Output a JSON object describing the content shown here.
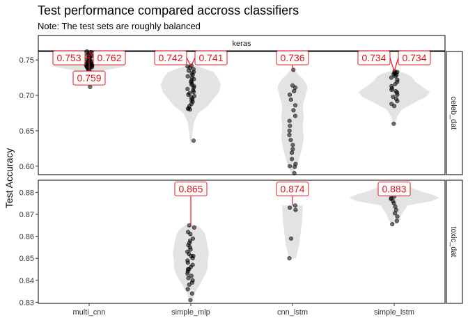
{
  "chart_data": {
    "type": "violin",
    "title": "Test performance compared accross classifiers",
    "subtitle": "Note: The test sets are roughly balanced",
    "ylabel": "Test Accuracy",
    "xlabel": "",
    "facet_col_label": "keras",
    "categories": [
      "multi_cnn",
      "simple_mlp",
      "cnn_lstm",
      "simple_lstm"
    ],
    "colors": {
      "violin": "#e3e3e3",
      "point": "#000000",
      "label": "#e4151b",
      "panel_border": "#000000"
    },
    "panels": [
      {
        "row_label": "celeb_dat",
        "ylim": [
          0.588,
          0.762
        ],
        "yticks": [
          0.6,
          0.65,
          0.7,
          0.75
        ],
        "tick_labels": [
          "0.60",
          "0.65",
          "0.70",
          "0.75"
        ],
        "violins": [
          {
            "category": "multi_cnn",
            "density": [
              [
                0.712,
                0.04
              ],
              [
                0.722,
                0.06
              ],
              [
                0.73,
                0.12
              ],
              [
                0.735,
                0.35
              ],
              [
                0.739,
                0.8
              ],
              [
                0.742,
                1.0
              ],
              [
                0.746,
                0.75
              ],
              [
                0.75,
                0.45
              ],
              [
                0.755,
                0.28
              ],
              [
                0.76,
                0.12
              ],
              [
                0.762,
                0.05
              ]
            ]
          },
          {
            "category": "simple_mlp",
            "density": [
              [
                0.636,
                0.02
              ],
              [
                0.65,
                0.05
              ],
              [
                0.662,
                0.08
              ],
              [
                0.675,
                0.2
              ],
              [
                0.685,
                0.45
              ],
              [
                0.695,
                0.6
              ],
              [
                0.705,
                0.75
              ],
              [
                0.715,
                0.8
              ],
              [
                0.725,
                0.72
              ],
              [
                0.733,
                0.6
              ],
              [
                0.738,
                0.35
              ],
              [
                0.742,
                0.12
              ]
            ]
          },
          {
            "category": "cnn_lstm",
            "density": [
              [
                0.59,
                0.03
              ],
              [
                0.597,
                0.08
              ],
              [
                0.605,
                0.15
              ],
              [
                0.615,
                0.2
              ],
              [
                0.625,
                0.25
              ],
              [
                0.64,
                0.3
              ],
              [
                0.655,
                0.27
              ],
              [
                0.67,
                0.3
              ],
              [
                0.685,
                0.27
              ],
              [
                0.7,
                0.35
              ],
              [
                0.712,
                0.4
              ],
              [
                0.722,
                0.3
              ],
              [
                0.73,
                0.15
              ],
              [
                0.736,
                0.04
              ]
            ]
          },
          {
            "category": "simple_lstm",
            "density": [
              [
                0.66,
                0.03
              ],
              [
                0.67,
                0.08
              ],
              [
                0.68,
                0.2
              ],
              [
                0.69,
                0.55
              ],
              [
                0.698,
                0.85
              ],
              [
                0.705,
                0.95
              ],
              [
                0.712,
                0.75
              ],
              [
                0.72,
                0.55
              ],
              [
                0.727,
                0.45
              ],
              [
                0.731,
                0.3
              ],
              [
                0.734,
                0.12
              ]
            ]
          }
        ],
        "points": [
          {
            "category": "multi_cnn",
            "values": [
              0.762,
              0.761,
              0.76,
              0.759,
              0.757,
              0.756,
              0.755,
              0.754,
              0.753,
              0.752,
              0.751,
              0.75,
              0.749,
              0.749,
              0.748,
              0.747,
              0.746,
              0.746,
              0.745,
              0.745,
              0.744,
              0.744,
              0.743,
              0.743,
              0.742,
              0.742,
              0.741,
              0.741,
              0.74,
              0.74,
              0.739,
              0.738,
              0.737,
              0.736,
              0.734,
              0.731,
              0.712
            ]
          },
          {
            "category": "simple_mlp",
            "values": [
              0.742,
              0.741,
              0.739,
              0.737,
              0.735,
              0.733,
              0.731,
              0.729,
              0.727,
              0.725,
              0.723,
              0.721,
              0.719,
              0.717,
              0.715,
              0.713,
              0.711,
              0.709,
              0.707,
              0.705,
              0.703,
              0.701,
              0.699,
              0.697,
              0.695,
              0.693,
              0.691,
              0.688,
              0.685,
              0.682,
              0.681,
              0.68,
              0.636
            ]
          },
          {
            "category": "cnn_lstm",
            "values": [
              0.736,
              0.714,
              0.711,
              0.706,
              0.701,
              0.694,
              0.686,
              0.679,
              0.671,
              0.664,
              0.657,
              0.65,
              0.644,
              0.637,
              0.63,
              0.624,
              0.619,
              0.61,
              0.603,
              0.6,
              0.599,
              0.59
            ]
          },
          {
            "category": "simple_lstm",
            "values": [
              0.734,
              0.733,
              0.732,
              0.731,
              0.73,
              0.729,
              0.727,
              0.725,
              0.722,
              0.719,
              0.716,
              0.713,
              0.71,
              0.708,
              0.706,
              0.704,
              0.701,
              0.698,
              0.695,
              0.692,
              0.688,
              0.685,
              0.66
            ]
          }
        ],
        "labels": [
          {
            "category": "multi_cnn",
            "text": "0.753",
            "value": 0.753,
            "side": -1,
            "label_y": 0.753
          },
          {
            "category": "multi_cnn",
            "text": "0.762",
            "value": 0.762,
            "side": 1,
            "label_y": 0.753
          },
          {
            "category": "multi_cnn",
            "text": "0.759",
            "value": 0.759,
            "side": 0,
            "label_y": 0.7245
          },
          {
            "category": "simple_mlp",
            "text": "0.742",
            "value": 0.742,
            "side": -1,
            "label_y": 0.753
          },
          {
            "category": "simple_mlp",
            "text": "0.741",
            "value": 0.741,
            "side": 1,
            "label_y": 0.753
          },
          {
            "category": "cnn_lstm",
            "text": "0.736",
            "value": 0.736,
            "side": 0,
            "label_y": 0.753
          },
          {
            "category": "simple_lstm",
            "text": "0.734",
            "value": 0.734,
            "side": -1,
            "label_y": 0.753
          },
          {
            "category": "simple_lstm",
            "text": "0.734",
            "value": 0.734,
            "side": 1,
            "label_y": 0.753
          }
        ]
      },
      {
        "row_label": "toxic_dat",
        "ylim": [
          0.8295,
          0.8855
        ],
        "yticks": [
          0.83,
          0.84,
          0.85,
          0.86,
          0.87,
          0.88
        ],
        "tick_labels": [
          "0.83",
          "0.84",
          "0.85",
          "0.86",
          "0.87",
          "0.88"
        ],
        "violins": [
          {
            "category": "simple_mlp",
            "density": [
              [
                0.831,
                0.05
              ],
              [
                0.834,
                0.1
              ],
              [
                0.837,
                0.2
              ],
              [
                0.84,
                0.3
              ],
              [
                0.843,
                0.4
              ],
              [
                0.846,
                0.45
              ],
              [
                0.849,
                0.45
              ],
              [
                0.852,
                0.48
              ],
              [
                0.855,
                0.45
              ],
              [
                0.858,
                0.42
              ],
              [
                0.861,
                0.38
              ],
              [
                0.863,
                0.3
              ],
              [
                0.865,
                0.15
              ]
            ]
          },
          {
            "category": "cnn_lstm",
            "density": [
              [
                0.85,
                0.1
              ],
              [
                0.853,
                0.13
              ],
              [
                0.856,
                0.18
              ],
              [
                0.859,
                0.2
              ],
              [
                0.862,
                0.22
              ],
              [
                0.865,
                0.24
              ],
              [
                0.868,
                0.26
              ],
              [
                0.871,
                0.27
              ],
              [
                0.873,
                0.27
              ],
              [
                0.874,
                0.27
              ]
            ]
          },
          {
            "category": "simple_lstm",
            "density": [
              [
                0.8655,
                0.05
              ],
              [
                0.8675,
                0.15
              ],
              [
                0.87,
                0.2
              ],
              [
                0.8725,
                0.3
              ],
              [
                0.874,
                0.35
              ],
              [
                0.876,
                1.0
              ],
              [
                0.8775,
                1.2
              ],
              [
                0.879,
                1.0
              ],
              [
                0.8805,
                0.7
              ],
              [
                0.8825,
                0.4
              ],
              [
                0.883,
                0.15
              ]
            ]
          }
        ],
        "points": [
          {
            "category": "simple_mlp",
            "values": [
              0.865,
              0.864,
              0.862,
              0.861,
              0.859,
              0.858,
              0.857,
              0.856,
              0.855,
              0.854,
              0.853,
              0.852,
              0.851,
              0.851,
              0.85,
              0.849,
              0.848,
              0.847,
              0.846,
              0.845,
              0.845,
              0.844,
              0.843,
              0.842,
              0.841,
              0.84,
              0.839,
              0.838,
              0.836,
              0.834,
              0.831
            ]
          },
          {
            "category": "cnn_lstm",
            "values": [
              0.874,
              0.873,
              0.872,
              0.859,
              0.85
            ]
          },
          {
            "category": "simple_lstm",
            "values": [
              0.883,
              0.8825,
              0.882,
              0.8815,
              0.881,
              0.8805,
              0.8795,
              0.878,
              0.8775,
              0.877,
              0.876,
              0.875,
              0.8735,
              0.872,
              0.8705,
              0.869,
              0.867,
              0.8655
            ]
          }
        ],
        "labels": [
          {
            "category": "simple_mlp",
            "text": "0.865",
            "value": 0.865,
            "side": 0,
            "label_y": 0.8815
          },
          {
            "category": "cnn_lstm",
            "text": "0.874",
            "value": 0.874,
            "side": 0,
            "label_y": 0.8815
          },
          {
            "category": "simple_lstm",
            "text": "0.883",
            "value": 0.883,
            "side": 0,
            "label_y": 0.8815
          }
        ]
      }
    ]
  }
}
